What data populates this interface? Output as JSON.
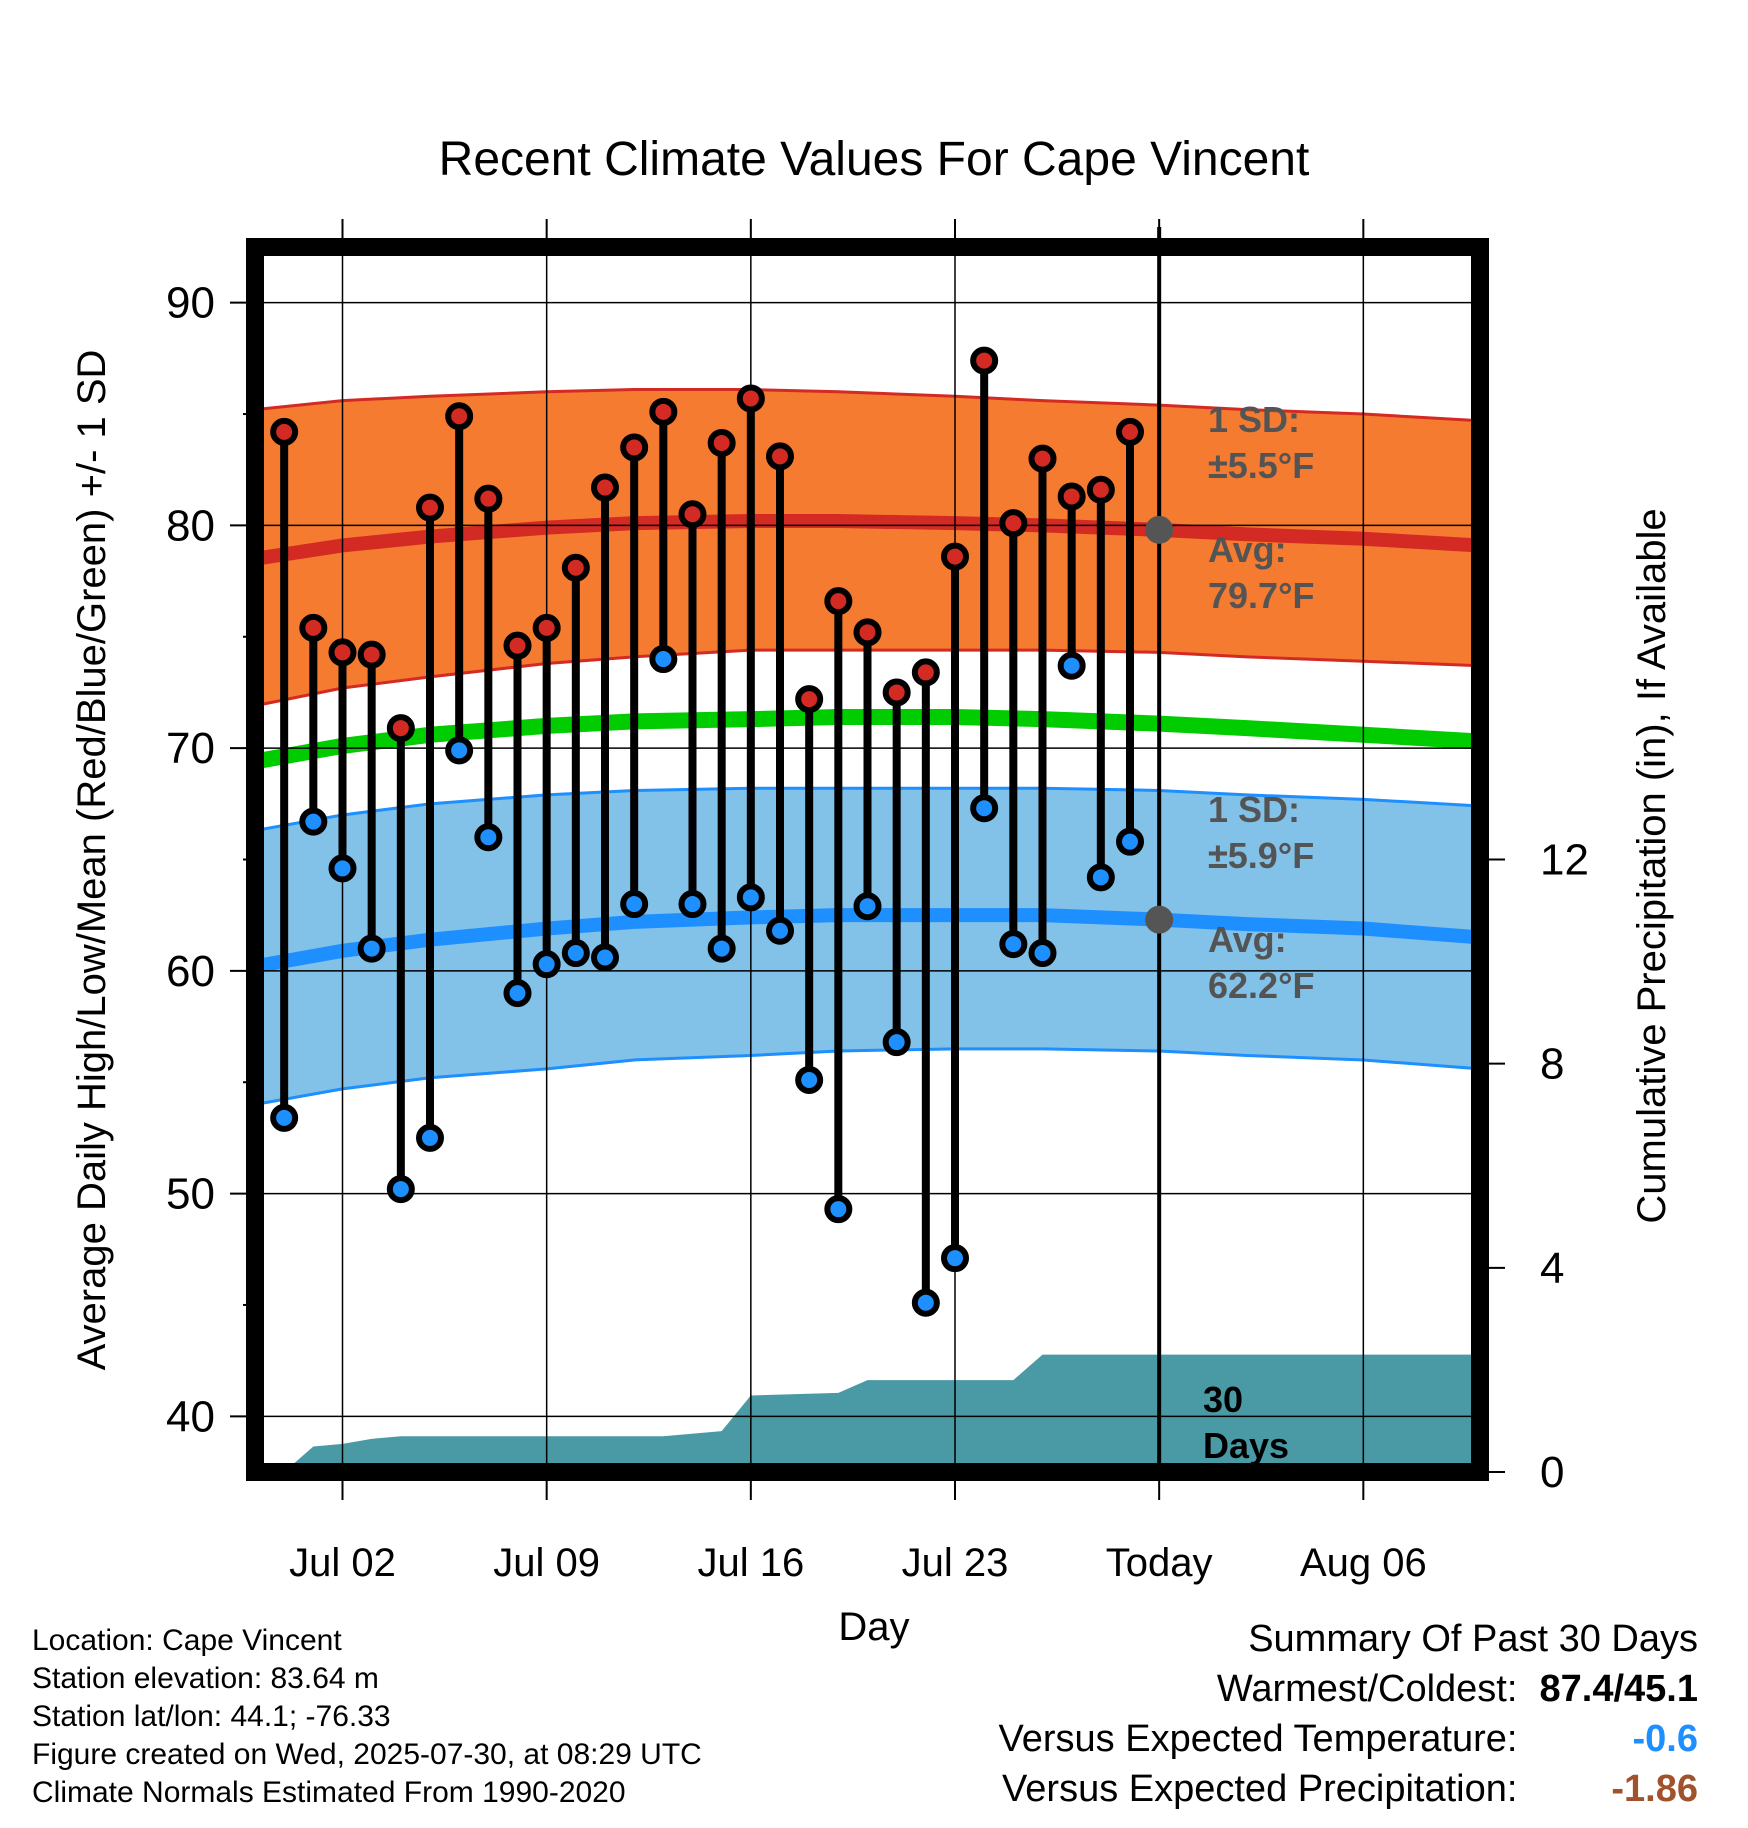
{
  "chart_data": {
    "type": "line",
    "title": "Recent Climate Values For Cape Vincent",
    "xlabel": "Day",
    "ylabel": "Average Daily High/Low/Mean (Red/Blue/Green) +/- 1 SD",
    "y2label": "Cumulative Precipitation (in), If Available",
    "ylim": [
      37.5,
      92.5
    ],
    "y2lim": [
      0,
      24
    ],
    "yticks": [
      40,
      50,
      60,
      70,
      80,
      90
    ],
    "y2ticks": [
      0,
      4,
      8,
      12
    ],
    "xlim": [
      "2025-06-29",
      "2025-08-10"
    ],
    "xticks": [
      {
        "date": "2025-07-02",
        "label": "Jul 02"
      },
      {
        "date": "2025-07-09",
        "label": "Jul 09"
      },
      {
        "date": "2025-07-16",
        "label": "Jul 16"
      },
      {
        "date": "2025-07-23",
        "label": "Jul 23"
      },
      {
        "date": "2025-07-30",
        "label": "Today"
      },
      {
        "date": "2025-08-06",
        "label": "Aug 06"
      }
    ],
    "grid": true,
    "today": "2025-07-30",
    "normals": {
      "dates": [
        "2025-06-29",
        "2025-07-02",
        "2025-07-05",
        "2025-07-09",
        "2025-07-12",
        "2025-07-16",
        "2025-07-19",
        "2025-07-23",
        "2025-07-26",
        "2025-07-30",
        "2025-08-02",
        "2025-08-06",
        "2025-08-10"
      ],
      "avg_high": [
        78.5,
        79.1,
        79.5,
        79.9,
        80.1,
        80.2,
        80.2,
        80.1,
        80.0,
        79.8,
        79.6,
        79.4,
        79.1
      ],
      "high_sd_upper": [
        85.2,
        85.6,
        85.8,
        86.0,
        86.1,
        86.1,
        86.0,
        85.8,
        85.6,
        85.4,
        85.2,
        85.0,
        84.7
      ],
      "high_sd_lower": [
        71.9,
        72.7,
        73.2,
        73.8,
        74.1,
        74.4,
        74.4,
        74.4,
        74.4,
        74.3,
        74.1,
        73.9,
        73.7
      ],
      "avg_mean": [
        69.4,
        70.1,
        70.6,
        71.0,
        71.2,
        71.3,
        71.4,
        71.4,
        71.3,
        71.1,
        70.9,
        70.6,
        70.3
      ],
      "avg_low": [
        60.2,
        60.9,
        61.4,
        61.9,
        62.2,
        62.4,
        62.5,
        62.5,
        62.5,
        62.3,
        62.1,
        61.9,
        61.5
      ],
      "low_sd_upper": [
        66.3,
        67.0,
        67.5,
        67.9,
        68.1,
        68.2,
        68.2,
        68.2,
        68.2,
        68.1,
        67.9,
        67.7,
        67.4
      ],
      "low_sd_lower": [
        54.0,
        54.7,
        55.2,
        55.6,
        56.0,
        56.2,
        56.4,
        56.5,
        56.5,
        56.4,
        56.2,
        56.0,
        55.6
      ]
    },
    "observed": {
      "dates": [
        "2025-06-30",
        "2025-07-01",
        "2025-07-02",
        "2025-07-03",
        "2025-07-04",
        "2025-07-05",
        "2025-07-06",
        "2025-07-07",
        "2025-07-08",
        "2025-07-09",
        "2025-07-10",
        "2025-07-11",
        "2025-07-12",
        "2025-07-13",
        "2025-07-14",
        "2025-07-15",
        "2025-07-16",
        "2025-07-17",
        "2025-07-18",
        "2025-07-19",
        "2025-07-20",
        "2025-07-21",
        "2025-07-22",
        "2025-07-23",
        "2025-07-24",
        "2025-07-25",
        "2025-07-26",
        "2025-07-27",
        "2025-07-28",
        "2025-07-29"
      ],
      "high": [
        84.2,
        75.4,
        74.3,
        74.2,
        70.9,
        80.8,
        84.9,
        81.2,
        74.6,
        75.4,
        78.1,
        81.7,
        83.5,
        85.1,
        80.5,
        83.7,
        85.7,
        83.1,
        72.2,
        76.6,
        75.2,
        72.5,
        73.4,
        78.6,
        87.4,
        80.1,
        83.0,
        81.3,
        81.6,
        84.2
      ],
      "low": [
        53.4,
        66.7,
        64.6,
        61.0,
        50.2,
        52.5,
        69.9,
        66.0,
        59.0,
        60.3,
        60.8,
        60.6,
        63.0,
        74.0,
        63.0,
        61.0,
        63.3,
        61.8,
        55.1,
        49.3,
        62.9,
        56.8,
        45.1,
        47.1,
        67.3,
        61.2,
        60.8,
        73.7,
        64.2,
        65.8
      ]
    },
    "precip": {
      "dates": [
        "2025-06-29",
        "2025-06-30",
        "2025-07-01",
        "2025-07-02",
        "2025-07-03",
        "2025-07-04",
        "2025-07-13",
        "2025-07-15",
        "2025-07-16",
        "2025-07-19",
        "2025-07-20",
        "2025-07-25",
        "2025-07-26",
        "2025-08-10"
      ],
      "cumulative": [
        0.0,
        0.0,
        0.5,
        0.55,
        0.65,
        0.7,
        0.7,
        0.8,
        1.5,
        1.55,
        1.8,
        1.8,
        2.3,
        2.3
      ],
      "label": [
        "30",
        "Days"
      ]
    },
    "annotations": {
      "high_sd": [
        "1 SD:",
        "±5.5°F"
      ],
      "high_avg": [
        "Avg:",
        "79.7°F"
      ],
      "low_sd": [
        "1 SD:",
        "±5.9°F"
      ],
      "low_avg": [
        "Avg:",
        "62.2°F"
      ]
    },
    "colors": {
      "high_band": "#f47b30",
      "high_line": "#d42a24",
      "mean_line": "#00cc00",
      "low_band": "#82c1e8",
      "low_line": "#1e8ffe",
      "precip": "#4a9aa5",
      "high_marker": "#d42a24",
      "low_marker": "#1e8ffe",
      "annot": "#545454",
      "today_marker": "#555555"
    }
  },
  "info": {
    "location": "Location: Cape Vincent",
    "elevation": "Station elevation: 83.64 m",
    "latlon": "Station lat/lon: 44.1; -76.33",
    "created": "Figure created on Wed, 2025-07-30, at 08:29 UTC",
    "normals": "Climate Normals Estimated From 1990-2020"
  },
  "summary": {
    "title": "Summary Of Past 30 Days",
    "warmest_label": "Warmest/Coldest:",
    "warmest_value": "87.4/45.1",
    "temp_label": "Versus Expected Temperature:",
    "temp_value": "-0.6",
    "temp_color": "#1e8ffe",
    "precip_label": "Versus Expected Precipitation:",
    "precip_value": "-1.86",
    "precip_color": "#a0522d"
  }
}
